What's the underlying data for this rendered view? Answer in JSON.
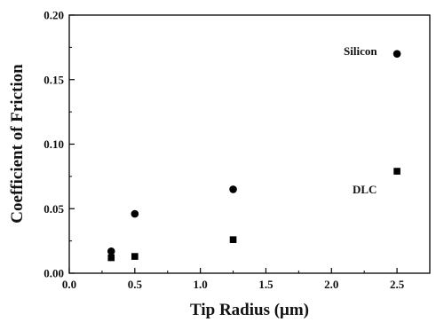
{
  "chart_data": {
    "type": "scatter",
    "xlabel": "Tip Radius (μm)",
    "ylabel": "Coefficient of Friction",
    "xlim": [
      0.0,
      2.75
    ],
    "ylim": [
      0.0,
      0.2
    ],
    "x_ticks": [
      0.0,
      0.5,
      1.0,
      1.5,
      2.0,
      2.5
    ],
    "x_tick_labels": [
      "0.0",
      "0.5",
      "1.0",
      "1.5",
      "2.0",
      "2.5"
    ],
    "y_ticks": [
      0.0,
      0.05,
      0.1,
      0.15,
      0.2
    ],
    "y_tick_labels": [
      "0.00",
      "0.05",
      "0.10",
      "0.15",
      "0.20"
    ],
    "grid": false,
    "legend": "none",
    "series": [
      {
        "name": "Silicon",
        "marker": "circle",
        "color": "#000000",
        "x": [
          0.32,
          0.5,
          1.25,
          2.5
        ],
        "y": [
          0.017,
          0.046,
          0.065,
          0.17
        ]
      },
      {
        "name": "DLC",
        "marker": "square",
        "color": "#000000",
        "x": [
          0.32,
          0.5,
          1.25,
          2.5
        ],
        "y": [
          0.012,
          0.013,
          0.026,
          0.079
        ]
      }
    ]
  }
}
